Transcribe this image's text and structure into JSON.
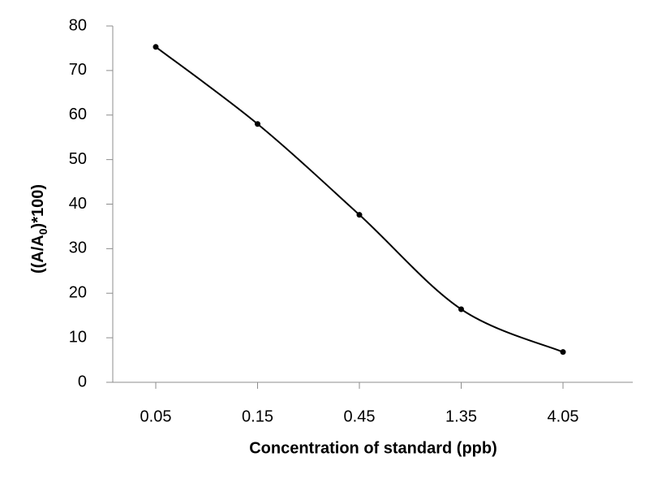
{
  "chart_data": {
    "type": "line",
    "x_label": "Concentration of standard (ppb)",
    "y_label": [
      "((A/A",
      "0",
      ")*100)"
    ],
    "categories": [
      "0.05",
      "0.15",
      "0.45",
      "1.35",
      "4.05"
    ],
    "values": [
      75.3,
      58,
      37.6,
      16.4,
      6.8
    ],
    "color": "#000000",
    "smooth": true,
    "markers": true,
    "grid": false,
    "ylim": [
      0,
      80
    ],
    "yticks": [
      0,
      10,
      20,
      30,
      40,
      50,
      60,
      70,
      80
    ]
  }
}
